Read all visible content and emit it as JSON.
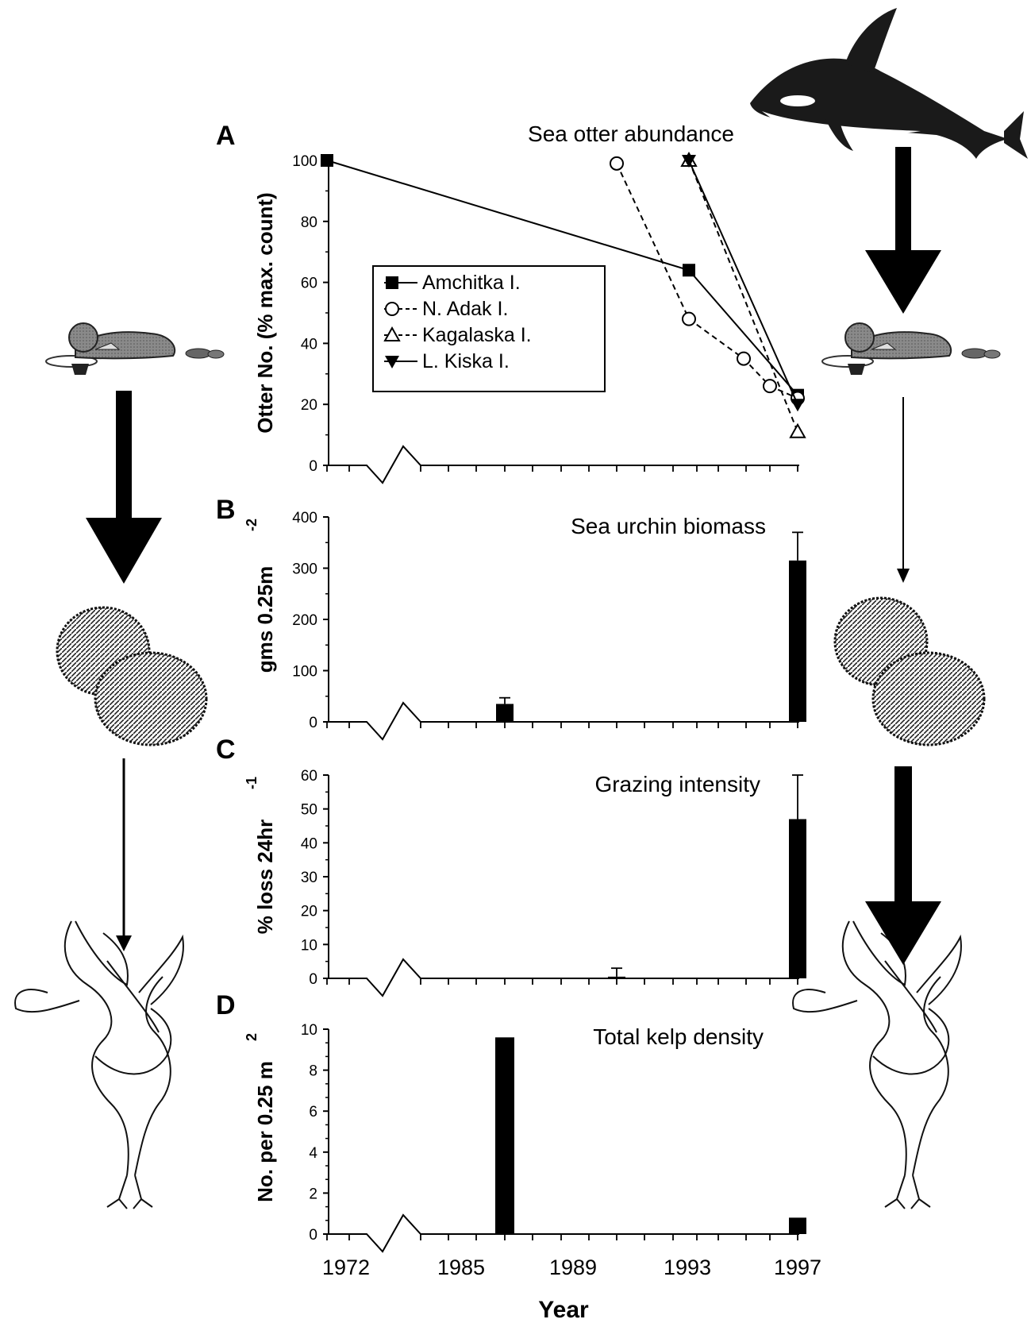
{
  "x_axis": {
    "label": "Year",
    "tick_labels": [
      "1972",
      "1985",
      "1989",
      "1993",
      "1997"
    ]
  },
  "panels": [
    {
      "letter": "A",
      "title": "Sea otter abundance",
      "ylabel": "Otter No. (% max. count)",
      "ylabel_sup": ""
    },
    {
      "letter": "B",
      "title": "Sea urchin biomass",
      "ylabel": "gms 0.25m",
      "ylabel_sup": "-2"
    },
    {
      "letter": "C",
      "title": "Grazing intensity",
      "ylabel": "% loss 24hr",
      "ylabel_sup": "-1"
    },
    {
      "letter": "D",
      "title": "Total kelp density",
      "ylabel": "No. per 0.25 m",
      "ylabel_sup": "2"
    }
  ],
  "illustrations": {
    "killer-whale-icon": "killer whale",
    "sea-otter-icon": "sea otter",
    "sea-urchin-icon": "sea urchins",
    "kelp-icon": "kelp"
  },
  "chart_data": [
    {
      "type": "line",
      "title": "Sea otter abundance",
      "ylabel": "Otter No. (% max. count)",
      "xlabel": "Year",
      "ylim": [
        0,
        100
      ],
      "yticks": [
        0,
        20,
        40,
        60,
        80,
        100
      ],
      "series": [
        {
          "name": "Amchitka I.",
          "marker": "filled-square",
          "line": "solid",
          "x": [
            1972,
            1993,
            1997
          ],
          "y": [
            100,
            64,
            23
          ]
        },
        {
          "name": "N. Adak I.",
          "marker": "open-circle",
          "line": "dashed",
          "x": [
            1991,
            1993,
            1995,
            1996,
            1997
          ],
          "y": [
            99,
            48,
            35,
            26,
            22
          ]
        },
        {
          "name": "Kagalaska I.",
          "marker": "open-triangle",
          "line": "dashed",
          "x": [
            1993,
            1997
          ],
          "y": [
            100,
            11
          ]
        },
        {
          "name": "L. Kiska I.",
          "marker": "filled-triangle-down",
          "line": "solid",
          "x": [
            1993,
            1997
          ],
          "y": [
            100,
            20
          ]
        }
      ]
    },
    {
      "type": "bar",
      "title": "Sea urchin biomass",
      "ylabel": "gms 0.25m-2",
      "xlabel": "Year",
      "ylim": [
        0,
        400
      ],
      "yticks": [
        0,
        100,
        200,
        300,
        400
      ],
      "bars": [
        {
          "x": 1987,
          "value": 35,
          "error": 12
        },
        {
          "x": 1997,
          "value": 315,
          "error": 55
        }
      ]
    },
    {
      "type": "bar",
      "title": "Grazing intensity",
      "ylabel": "% loss 24hr-1",
      "xlabel": "Year",
      "ylim": [
        0,
        60
      ],
      "yticks": [
        0,
        10,
        20,
        30,
        40,
        50,
        60
      ],
      "bars": [
        {
          "x": 1991,
          "value": 0.5,
          "error": 2.5
        },
        {
          "x": 1997,
          "value": 47,
          "error": 13
        }
      ]
    },
    {
      "type": "bar",
      "title": "Total kelp density",
      "ylabel": "No. per 0.25 m2",
      "xlabel": "Year",
      "ylim": [
        0,
        10
      ],
      "yticks": [
        0,
        2,
        4,
        6,
        8,
        10
      ],
      "bars": [
        {
          "x": 1987,
          "value": 9.6,
          "error": 0
        },
        {
          "x": 1997,
          "value": 0.8,
          "error": 0
        }
      ]
    }
  ],
  "legend": {
    "entries": [
      {
        "label": "Amchitka I."
      },
      {
        "label": "N. Adak I."
      },
      {
        "label": "Kagalaska I."
      },
      {
        "label": "L. Kiska I."
      }
    ]
  }
}
